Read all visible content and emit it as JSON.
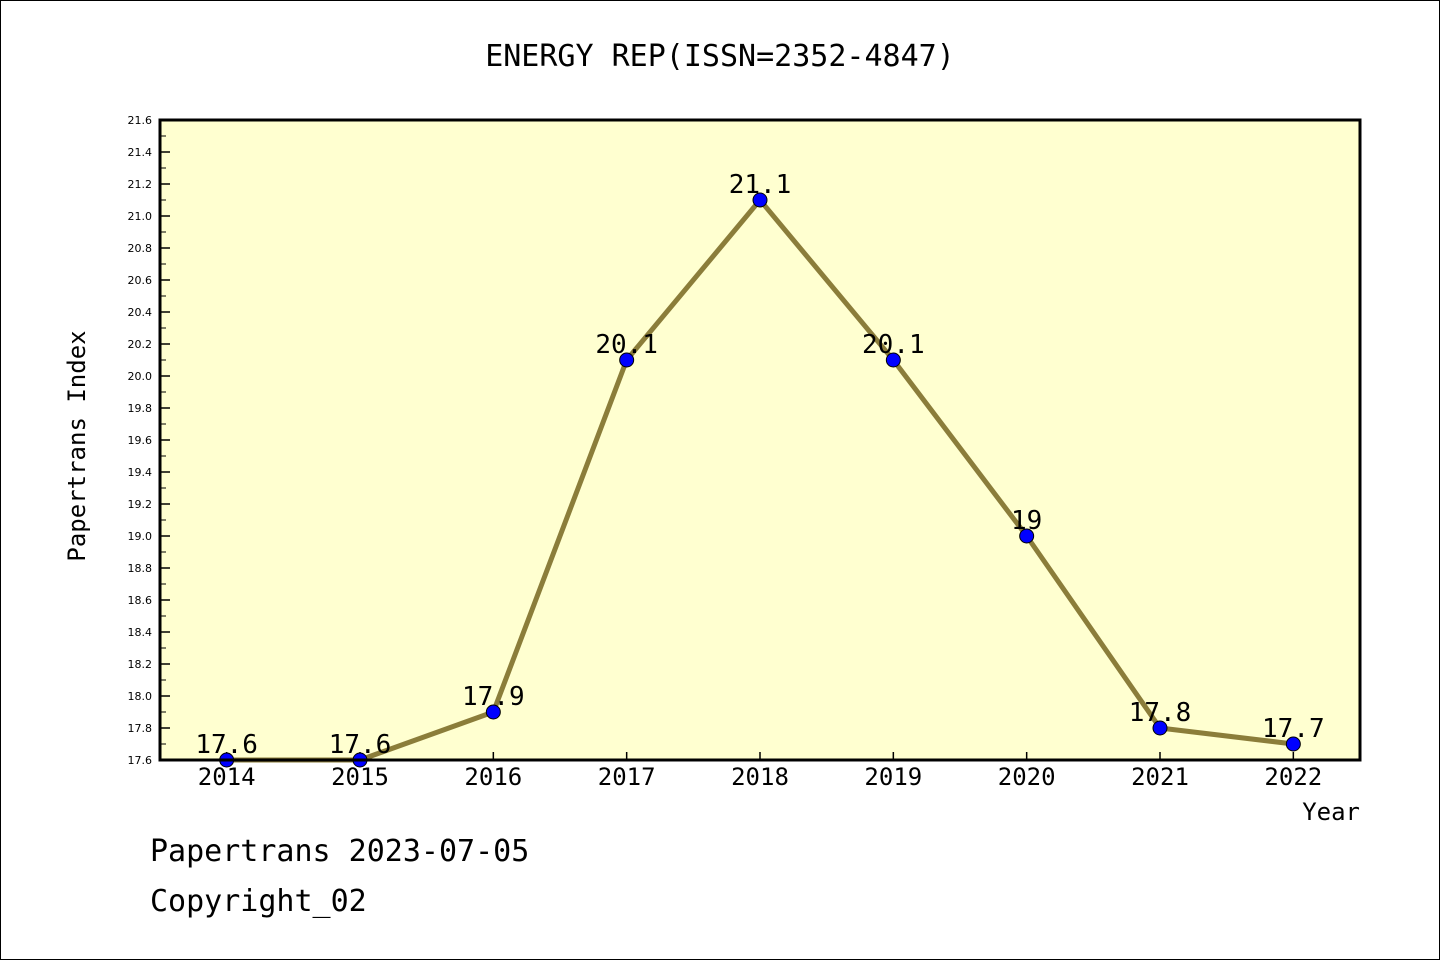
{
  "chart_data": {
    "type": "line",
    "title": "ENERGY REP(ISSN=2352-4847)",
    "xlabel": "Year",
    "ylabel": "Papertrans Index",
    "categories": [
      "2014",
      "2015",
      "2016",
      "2017",
      "2018",
      "2019",
      "2020",
      "2021",
      "2022"
    ],
    "values": [
      17.6,
      17.6,
      17.9,
      20.1,
      21.1,
      20.1,
      19,
      17.8,
      17.7
    ],
    "data_labels": [
      "17.6",
      "17.6",
      "17.9",
      "20.1",
      "21.1",
      "20.1",
      "19",
      "17.8",
      "17.7"
    ],
    "ylim": [
      17.6,
      21.6
    ],
    "ytick_step": 0.2,
    "grid": false,
    "line_color": "#8b7d3a",
    "marker_color": "#0000ff",
    "plot_background": "#ffffd0"
  },
  "footer": {
    "line1": "Papertrans 2023-07-05",
    "line2": "Copyright_02"
  }
}
